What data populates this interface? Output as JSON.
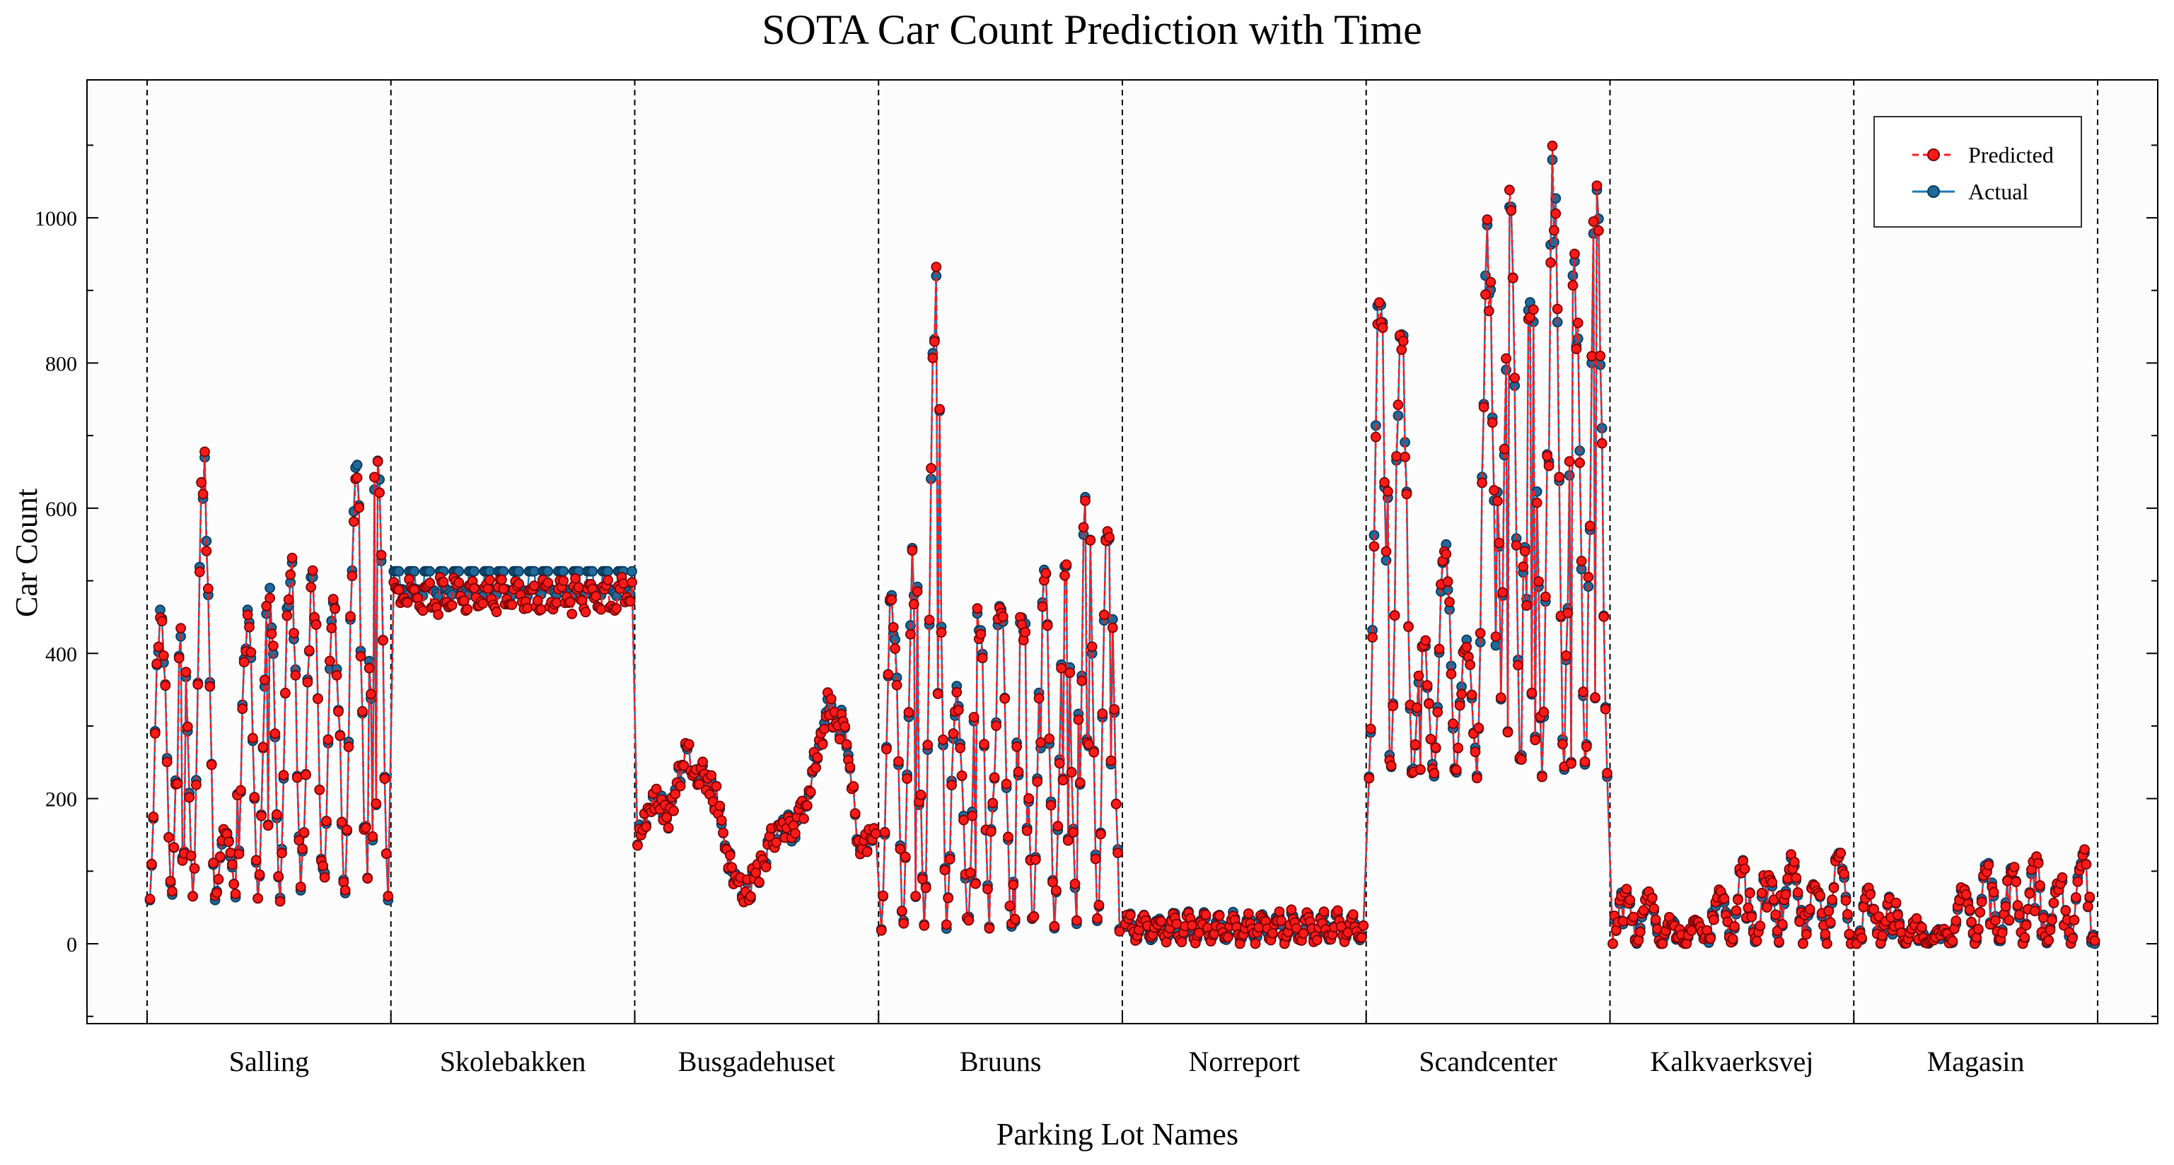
{
  "chart_data": {
    "type": "line",
    "title": "SOTA Car Count Prediction with Time",
    "xlabel": "Parking Lot Names",
    "ylabel": "Car Count",
    "ylim": [
      -110,
      1190
    ],
    "yticks": [
      0,
      200,
      400,
      600,
      800,
      1000
    ],
    "categories": [
      "Salling",
      "Skolebakken",
      "Busgadehuset",
      "Bruuns",
      "Norreport",
      "Scandcenter",
      "Kalkvaerksvej",
      "Magasin"
    ],
    "legend": {
      "placement": "top-right",
      "entries": [
        "Predicted",
        "Actual"
      ]
    },
    "series": [
      {
        "name": "Predicted",
        "color": "#ff1a1a",
        "edge": "#7a0000",
        "line": "dashed",
        "marker": "circle"
      },
      {
        "name": "Actual",
        "color": "#1f77b4",
        "edge": "#0a3a5c",
        "line": "solid",
        "marker": "circle"
      }
    ],
    "segments": [
      {
        "name": "Salling",
        "pattern": "peaks",
        "base": 60,
        "peaks": [
          460,
          450,
          670,
          160,
          460,
          490,
          525,
          505,
          470,
          690,
          670
        ]
      },
      {
        "name": "Skolebakken",
        "pattern": "flat",
        "high": 513,
        "low": 478,
        "cycles": 16
      },
      {
        "name": "Busgadehuset",
        "pattern": "waves",
        "points": [
          150,
          200,
          175,
          265,
          240,
          200,
          90,
          70,
          120,
          170,
          155,
          230,
          320,
          300,
          130,
          150
        ]
      },
      {
        "name": "Bruuns",
        "pattern": "peaks",
        "base": 20,
        "peaks": [
          480,
          545,
          920,
          355,
          455,
          465,
          505,
          515,
          520,
          620,
          605
        ]
      },
      {
        "name": "Norreport",
        "pattern": "low",
        "high": 45,
        "low": 5,
        "cycles": 16
      },
      {
        "name": "Scandcenter",
        "pattern": "peaks",
        "base": 230,
        "peaks": [
          880,
          870,
          410,
          550,
          425,
          990,
          1015,
          980,
          1080,
          940,
          1040
        ]
      },
      {
        "name": "Kalkvaerksvej",
        "pattern": "peaks",
        "base": 0,
        "peaks": [
          75,
          70,
          35,
          30,
          75,
          115,
          100,
          120,
          85,
          125
        ]
      },
      {
        "name": "Magasin",
        "pattern": "peaks",
        "base": 0,
        "peaks": [
          75,
          70,
          30,
          20,
          75,
          115,
          105,
          120,
          90,
          125
        ]
      }
    ]
  }
}
